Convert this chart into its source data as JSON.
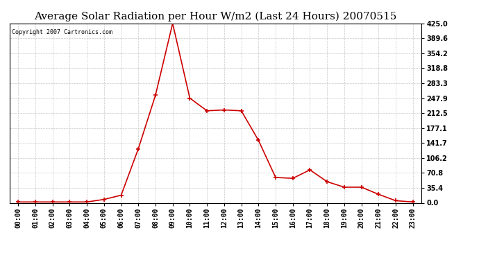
{
  "title": "Average Solar Radiation per Hour W/m2 (Last 24 Hours) 20070515",
  "copyright_text": "Copyright 2007 Cartronics.com",
  "hours": [
    "00:00",
    "01:00",
    "02:00",
    "03:00",
    "04:00",
    "05:00",
    "06:00",
    "07:00",
    "08:00",
    "09:00",
    "10:00",
    "11:00",
    "12:00",
    "13:00",
    "14:00",
    "15:00",
    "16:00",
    "17:00",
    "18:00",
    "19:00",
    "20:00",
    "21:00",
    "22:00",
    "23:00"
  ],
  "values": [
    2,
    2,
    2,
    2,
    2,
    8,
    18,
    128,
    255,
    425,
    248,
    218,
    220,
    218,
    148,
    60,
    58,
    78,
    50,
    37,
    37,
    20,
    5,
    2
  ],
  "line_color": "#cc0000",
  "marker": "+",
  "marker_size": 4,
  "background_color": "#ffffff",
  "grid_color": "#c8c8c8",
  "ylim": [
    0,
    425
  ],
  "yticks": [
    0.0,
    35.4,
    70.8,
    106.2,
    141.7,
    177.1,
    212.5,
    247.9,
    283.3,
    318.8,
    354.2,
    389.6,
    425.0
  ],
  "title_fontsize": 11,
  "copyright_fontsize": 6,
  "tick_fontsize": 7,
  "fig_width": 6.9,
  "fig_height": 3.75
}
